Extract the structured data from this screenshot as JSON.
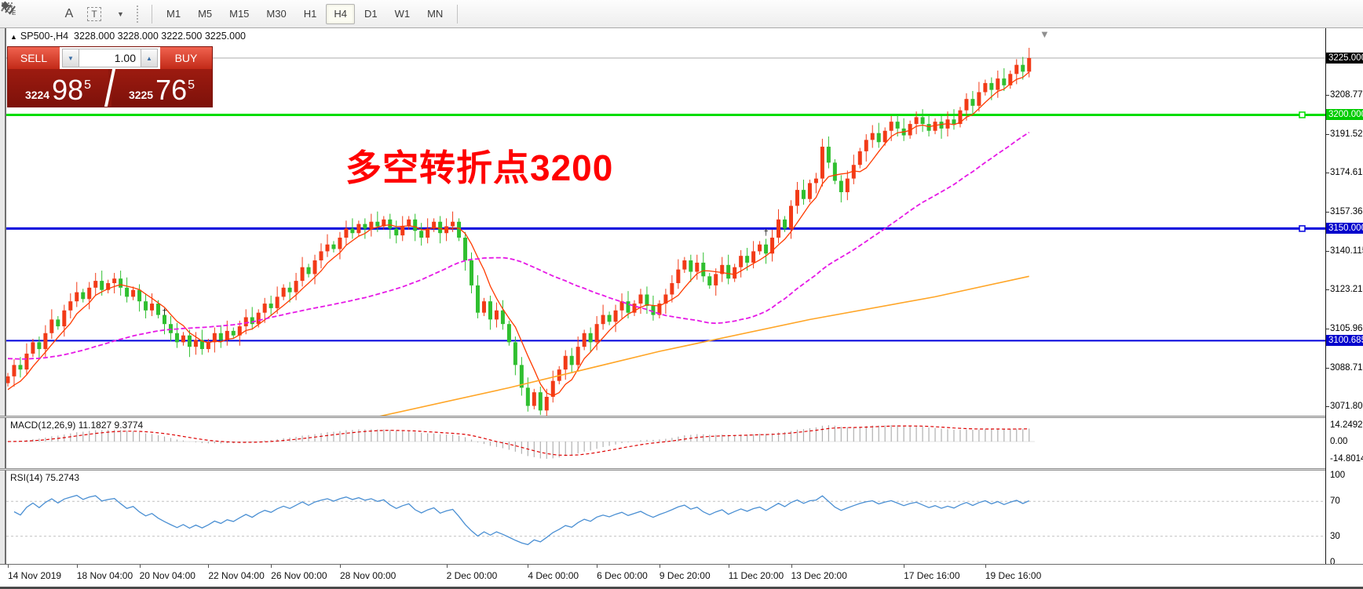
{
  "toolbar": {
    "tool_labels": {
      "e": "E",
      "f": "F",
      "a": "A",
      "t": "T"
    },
    "timeframes": [
      "M1",
      "M5",
      "M15",
      "M30",
      "H1",
      "H4",
      "D1",
      "W1",
      "MN"
    ],
    "active_timeframe": "H4"
  },
  "header": {
    "expand_glyph": "▲",
    "symbol": "SP500-,H4",
    "ohlc": "3228.000 3228.000 3222.500 3225.000"
  },
  "trade_panel": {
    "sell_label": "SELL",
    "buy_label": "BUY",
    "volume": "1.00",
    "down_glyph": "▼",
    "up_glyph": "▲",
    "sell_small": "3224",
    "sell_big": "98",
    "sell_sup": "5",
    "buy_small": "3225",
    "buy_big": "76",
    "buy_sup": "5"
  },
  "annotation": {
    "text": "多空转折点3200"
  },
  "price_axis": {
    "ticks": [
      {
        "label": "3225.000",
        "price": 3225.0,
        "style": "current"
      },
      {
        "label": "3208.770",
        "price": 3208.77,
        "style": "plain"
      },
      {
        "label": "3200.000",
        "price": 3200.0,
        "style": "green"
      },
      {
        "label": "3191.520",
        "price": 3191.52,
        "style": "plain"
      },
      {
        "label": "3174.615",
        "price": 3174.615,
        "style": "plain"
      },
      {
        "label": "3157.365",
        "price": 3157.365,
        "style": "plain"
      },
      {
        "label": "3150.000",
        "price": 3150.0,
        "style": "blue"
      },
      {
        "label": "3140.115",
        "price": 3140.115,
        "style": "plain"
      },
      {
        "label": "3123.210",
        "price": 3123.21,
        "style": "plain"
      },
      {
        "label": "3105.960",
        "price": 3105.96,
        "style": "plain"
      },
      {
        "label": "3100.685",
        "price": 3100.685,
        "style": "blue"
      },
      {
        "label": "3088.710",
        "price": 3088.71,
        "style": "plain"
      },
      {
        "label": "3071.805",
        "price": 3071.805,
        "style": "plain"
      }
    ]
  },
  "hlines": [
    {
      "price": 3225.0,
      "color": "#ababab",
      "width": 1,
      "handle": false
    },
    {
      "price": 3200.0,
      "color": "#00dd00",
      "width": 3,
      "handle": true
    },
    {
      "price": 3150.0,
      "color": "#0000dd",
      "width": 3,
      "handle": true
    },
    {
      "price": 3100.685,
      "color": "#0000dd",
      "width": 2,
      "handle": false
    }
  ],
  "macd": {
    "label": "MACD(12,26,9) 11.1827 9.3774",
    "axis": [
      {
        "label": "14.2492",
        "v": 14.2492
      },
      {
        "label": "0.00",
        "v": 0
      },
      {
        "label": "-14.8014",
        "v": -14.8014
      }
    ]
  },
  "rsi": {
    "label": "RSI(14) 75.2743",
    "axis": [
      {
        "label": "100",
        "v": 100
      },
      {
        "label": "70",
        "v": 70
      },
      {
        "label": "30",
        "v": 30
      },
      {
        "label": "0",
        "v": 0
      }
    ],
    "levels": [
      70,
      30
    ]
  },
  "date_axis": [
    {
      "label": "14 Nov 2019",
      "i": 0
    },
    {
      "label": "18 Nov 04:00",
      "i": 11
    },
    {
      "label": "20 Nov 04:00",
      "i": 21
    },
    {
      "label": "22 Nov 04:00",
      "i": 32
    },
    {
      "label": "26 Nov 00:00",
      "i": 42
    },
    {
      "label": "28 Nov 00:00",
      "i": 53
    },
    {
      "label": "2 Dec 00:00",
      "i": 70
    },
    {
      "label": "4 Dec 00:00",
      "i": 83
    },
    {
      "label": "6 Dec 00:00",
      "i": 94
    },
    {
      "label": "9 Dec 20:00",
      "i": 104
    },
    {
      "label": "11 Dec 20:00",
      "i": 115
    },
    {
      "label": "13 Dec 20:00",
      "i": 125
    },
    {
      "label": "17 Dec 16:00",
      "i": 143
    },
    {
      "label": "19 Dec 16:00",
      "i": 156
    }
  ],
  "colors": {
    "up_candle": "#f23a17",
    "down_candle": "#2fbf2f",
    "ma_fast": "#ff3b00",
    "ma_mid": "#e619e6",
    "ma_slow": "#ffa526",
    "rsi_line": "#4a8fd3",
    "macd_hist": "#b0b0b0",
    "macd_signal": "#dd0000",
    "level_dash": "#c0c0c0",
    "annotation_red": "#ff0000"
  },
  "chart_data": {
    "type": "candlestick",
    "symbol": "SP500-",
    "timeframe": "H4",
    "first_open": 3082,
    "closes": [
      3085,
      3090,
      3088,
      3095,
      3100,
      3097,
      3104,
      3110,
      3107,
      3114,
      3118,
      3122,
      3119,
      3124,
      3127,
      3123,
      3126,
      3128,
      3124,
      3120,
      3123,
      3118,
      3114,
      3117,
      3112,
      3108,
      3104,
      3100,
      3103,
      3098,
      3101,
      3097,
      3100,
      3104,
      3101,
      3105,
      3103,
      3107,
      3111,
      3108,
      3113,
      3117,
      3115,
      3120,
      3124,
      3122,
      3127,
      3133,
      3130,
      3136,
      3140,
      3143,
      3141,
      3146,
      3150,
      3148,
      3152,
      3150,
      3153,
      3151,
      3154,
      3150,
      3147,
      3151,
      3154,
      3149,
      3146,
      3150,
      3153,
      3148,
      3151,
      3153,
      3146,
      3136,
      3125,
      3113,
      3118,
      3110,
      3114,
      3108,
      3100,
      3090,
      3080,
      3072,
      3078,
      3070,
      3076,
      3083,
      3088,
      3094,
      3090,
      3098,
      3104,
      3100,
      3108,
      3112,
      3109,
      3114,
      3118,
      3113,
      3117,
      3121,
      3116,
      3112,
      3117,
      3121,
      3126,
      3132,
      3136,
      3131,
      3135,
      3129,
      3125,
      3130,
      3134,
      3128,
      3133,
      3138,
      3135,
      3140,
      3143,
      3139,
      3146,
      3154,
      3150,
      3160,
      3167,
      3163,
      3170,
      3172,
      3186,
      3179,
      3171,
      3166,
      3172,
      3178,
      3184,
      3189,
      3192,
      3188,
      3193,
      3197,
      3194,
      3191,
      3196,
      3199,
      3196,
      3193,
      3197,
      3194,
      3198,
      3196,
      3202,
      3207,
      3204,
      3210,
      3214,
      3211,
      3216,
      3213,
      3218,
      3222,
      3219,
      3225
    ],
    "ma_fast": {
      "period": 6,
      "pad": 3078
    },
    "ma_mid": {
      "period": 40,
      "pad": 3093
    },
    "ma_slow_points": [
      [
        57,
        3066
      ],
      [
        80,
        3080
      ],
      [
        104,
        3096
      ],
      [
        128,
        3110
      ],
      [
        148,
        3120
      ],
      [
        163,
        3129
      ]
    ],
    "markers": [
      {
        "i": 25,
        "price": 3112,
        "glyph": "†"
      },
      {
        "i": 121,
        "price": 3147,
        "glyph": "†"
      }
    ],
    "indicators": {
      "macd": {
        "fast": 12,
        "slow": 26,
        "signal": 9,
        "value": "11.1827",
        "signal_value": "9.3774",
        "max": "14.2492",
        "min": "-14.8014"
      },
      "rsi": {
        "period": 14,
        "value": "75.2743"
      }
    }
  }
}
